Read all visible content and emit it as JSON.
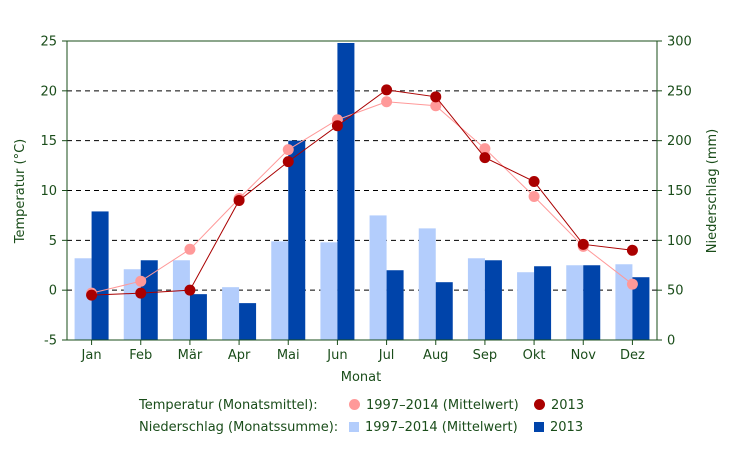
{
  "chart_data": {
    "type": "bar",
    "categories": [
      "Jan",
      "Feb",
      "Mär",
      "Apr",
      "Mai",
      "Jun",
      "Jul",
      "Aug",
      "Sep",
      "Okt",
      "Nov",
      "Dez"
    ],
    "xlabel": "Monat",
    "ylabel_left": "Temperatur (°C)",
    "ylabel_right": "Niederschlag (mm)",
    "ylim_left": [
      -5,
      25
    ],
    "yticks_left": [
      -5,
      0,
      5,
      10,
      15,
      20,
      25
    ],
    "ylim_right": [
      0,
      300
    ],
    "yticks_right": [
      0,
      50,
      100,
      150,
      200,
      250,
      300
    ],
    "grid": "horizontal dashed",
    "precipitation": {
      "legend_title": "Niederschlag (Monatssumme):",
      "series": [
        {
          "name": "1997–2014 (Mittelwert)",
          "color": "#b3cdfc",
          "values": [
            82,
            71,
            80,
            53,
            99,
            98,
            125,
            112,
            82,
            68,
            75,
            76
          ]
        },
        {
          "name": "2013",
          "color": "#0044aa",
          "values": [
            129,
            80,
            46,
            37,
            200,
            298,
            70,
            58,
            80,
            74,
            75,
            63
          ]
        }
      ]
    },
    "temperature": {
      "legend_title": "Temperatur (Monatsmittel):",
      "series": [
        {
          "name": "1997–2014 (Mittelwert)",
          "color": "#ff9999",
          "values": [
            -0.3,
            0.9,
            4.1,
            9.2,
            14.1,
            17.1,
            18.9,
            18.5,
            14.2,
            9.4,
            4.4,
            0.6
          ]
        },
        {
          "name": "2013",
          "color": "#aa0000",
          "values": [
            -0.5,
            -0.3,
            0.0,
            9.0,
            12.9,
            16.5,
            20.1,
            19.4,
            13.3,
            10.9,
            4.6,
            4.0
          ]
        }
      ]
    }
  }
}
